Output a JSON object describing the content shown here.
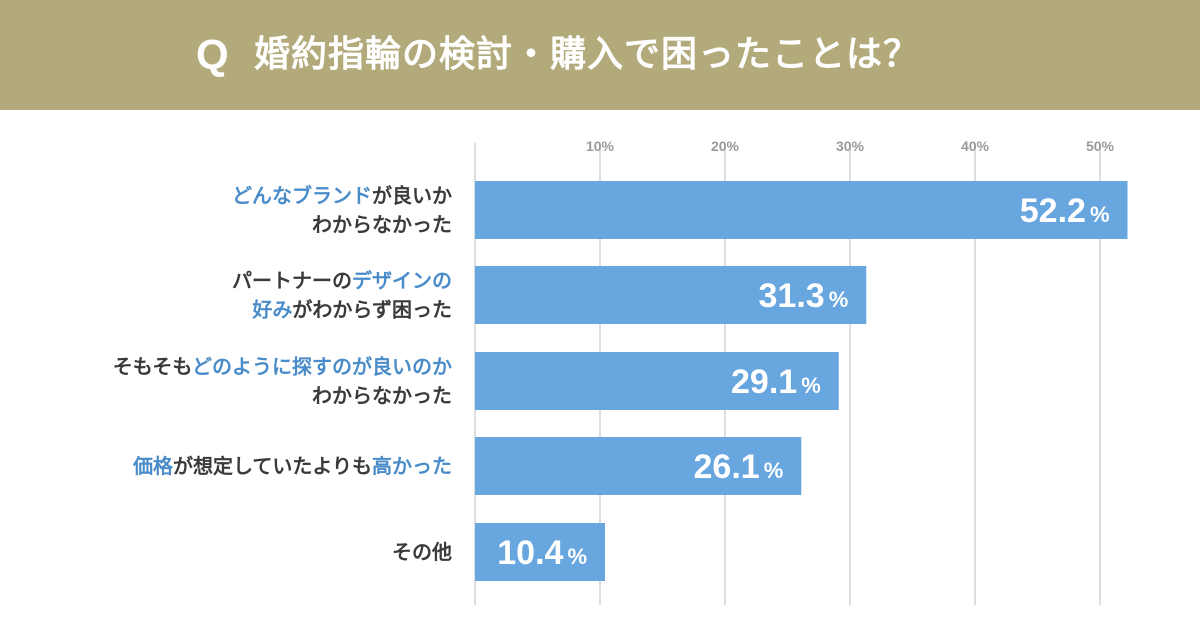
{
  "header": {
    "q": "Q",
    "title": "婚約指輪の検討・購入で困ったことは？"
  },
  "colors": {
    "header_bg": "#b3aa7b",
    "bar": "#68a6df",
    "highlight_text": "#4a8cc9",
    "normal_text": "#3a3a3a",
    "grid": "#d4d4d4"
  },
  "chart_data": {
    "type": "bar",
    "orientation": "horizontal",
    "xlim": [
      0,
      52.2
    ],
    "ticks": [
      "10%",
      "20%",
      "30%",
      "40%",
      "50%"
    ],
    "tick_values": [
      10,
      20,
      30,
      40,
      50
    ],
    "value_suffix": "%",
    "categories": [
      {
        "lines": [
          [
            {
              "text": "どんなブランド",
              "hl": true
            },
            {
              "text": "が良いか",
              "hl": false
            }
          ],
          [
            {
              "text": "わからなかった",
              "hl": false
            }
          ]
        ],
        "value": 52.2,
        "label": "52.2"
      },
      {
        "lines": [
          [
            {
              "text": "パートナーの",
              "hl": false
            },
            {
              "text": "デザインの",
              "hl": true
            }
          ],
          [
            {
              "text": "好み",
              "hl": true
            },
            {
              "text": "がわからず困った",
              "hl": false
            }
          ]
        ],
        "value": 31.3,
        "label": "31.3"
      },
      {
        "lines": [
          [
            {
              "text": "そもそも",
              "hl": false
            },
            {
              "text": "どのように探すのが良いのか",
              "hl": true
            }
          ],
          [
            {
              "text": "わからなかった",
              "hl": false
            }
          ]
        ],
        "value": 29.1,
        "label": "29.1"
      },
      {
        "lines": [
          [
            {
              "text": "価格",
              "hl": true
            },
            {
              "text": "が想定していたよりも",
              "hl": false
            },
            {
              "text": "高かった",
              "hl": true
            }
          ]
        ],
        "value": 26.1,
        "label": "26.1"
      },
      {
        "lines": [
          [
            {
              "text": "その他",
              "hl": false
            }
          ]
        ],
        "value": 10.4,
        "label": "10.4"
      }
    ]
  }
}
